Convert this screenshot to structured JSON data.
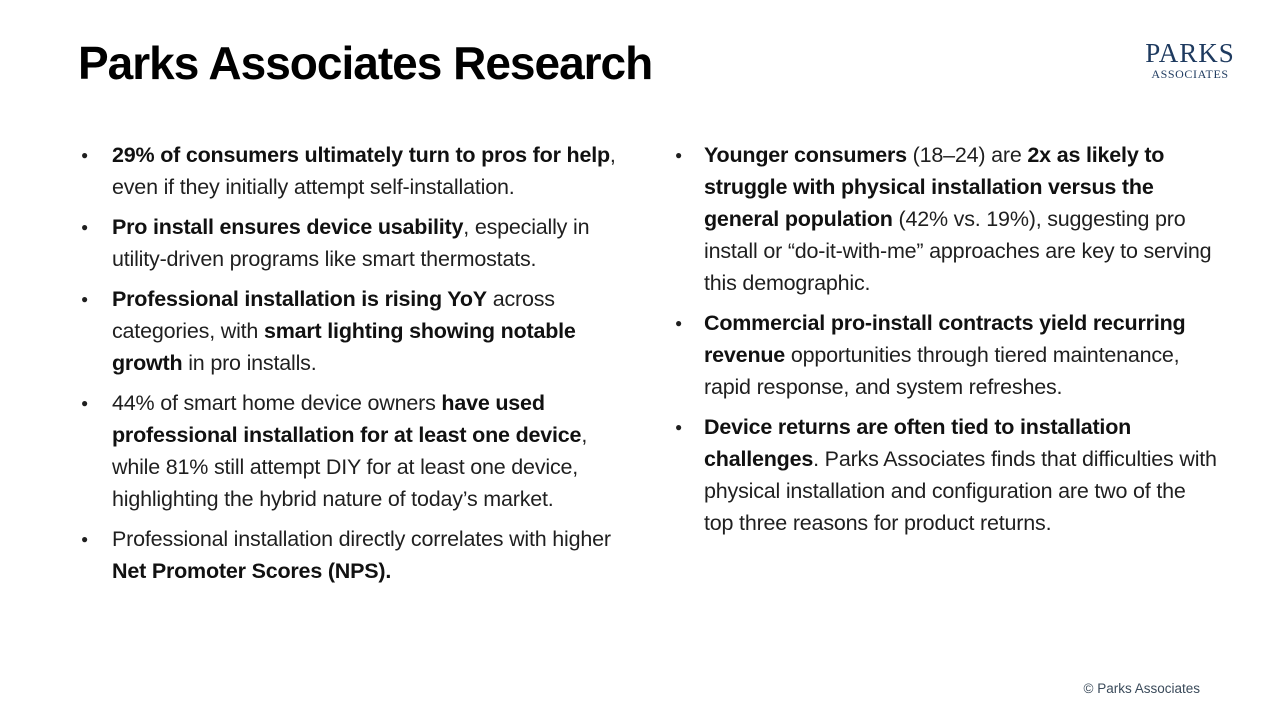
{
  "slide": {
    "title": "Parks Associates Research",
    "copyright": "© Parks Associates"
  },
  "logo": {
    "top": "PARKS",
    "bottom": "ASSOCIATES"
  },
  "colors": {
    "background": "#FFFFFF",
    "title_text": "#000000",
    "body_text": "#1F1F1F",
    "logo_navy": "#1E3A5F",
    "copyright_text": "#3A4A5A"
  },
  "bullets": {
    "left": [
      {
        "segments": [
          {
            "text": "29% of consumers ultimately turn to pros for help",
            "bold": true
          },
          {
            "text": ", even if they initially attempt self-installation.",
            "bold": false
          }
        ]
      },
      {
        "segments": [
          {
            "text": "Pro install ensures device usability",
            "bold": true
          },
          {
            "text": ", especially in utility-driven programs like smart thermostats.",
            "bold": false
          }
        ]
      },
      {
        "segments": [
          {
            "text": "Professional installation is rising YoY",
            "bold": true
          },
          {
            "text": " across categories, with ",
            "bold": false
          },
          {
            "text": "smart lighting showing notable growth",
            "bold": true
          },
          {
            "text": " in pro installs.",
            "bold": false
          }
        ]
      },
      {
        "segments": [
          {
            "text": "44% of smart home device owners ",
            "bold": false
          },
          {
            "text": "have used professional installation for at least one device",
            "bold": true
          },
          {
            "text": ", while 81% still attempt DIY for at least one device, highlighting the hybrid nature of today’s market.",
            "bold": false
          }
        ]
      },
      {
        "segments": [
          {
            "text": "Professional installation directly correlates with higher ",
            "bold": false
          },
          {
            "text": "Net Promoter Scores (NPS).",
            "bold": true
          }
        ]
      }
    ],
    "right": [
      {
        "segments": [
          {
            "text": "Younger consumers",
            "bold": true
          },
          {
            "text": " (18–24) are ",
            "bold": false
          },
          {
            "text": "2x as likely to struggle with physical installation versus the general population",
            "bold": true
          },
          {
            "text": " (42% vs. 19%), suggesting pro install or “do-it-with-me” approaches are key to serving this demographic.",
            "bold": false
          }
        ]
      },
      {
        "segments": [
          {
            "text": "Commercial pro-install contracts yield recurring revenue",
            "bold": true
          },
          {
            "text": " opportunities through tiered maintenance, rapid response, and system refreshes.",
            "bold": false
          }
        ]
      },
      {
        "segments": [
          {
            "text": "Device returns are often tied to installation challenges",
            "bold": true
          },
          {
            "text": ". Parks Associates finds that difficulties with physical installation and configuration are two of the top three reasons for product returns.",
            "bold": false
          }
        ]
      }
    ]
  }
}
